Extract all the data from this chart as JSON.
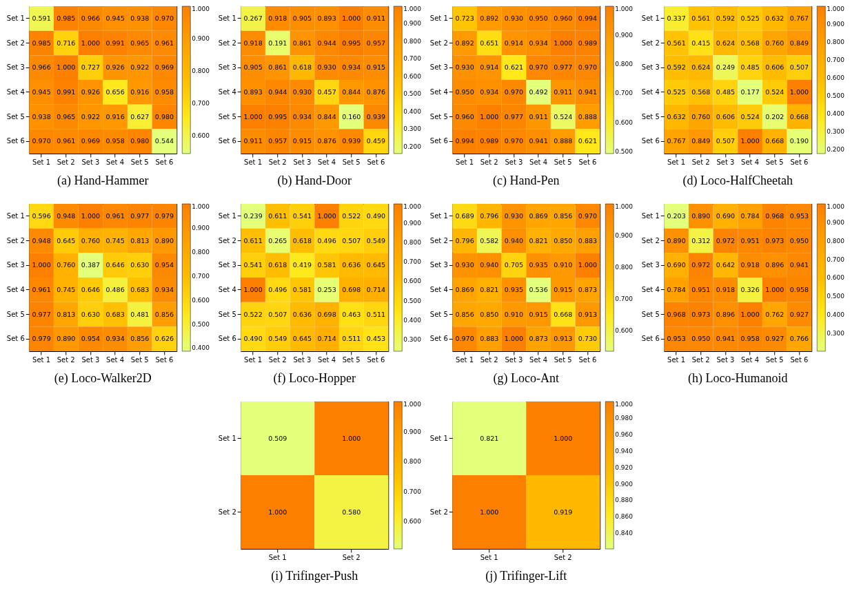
{
  "chart_data": [
    {
      "type": "heatmap",
      "title": "(a) Hand-Hammer",
      "categories": [
        "Set 1",
        "Set 2",
        "Set 3",
        "Set 4",
        "Set 5",
        "Set 6"
      ],
      "y_categories": [
        "Set 1",
        "Set 2",
        "Set 3",
        "Set 4",
        "Set 5",
        "Set 6"
      ],
      "cells": [
        [
          0.591,
          0.985,
          0.966,
          0.945,
          0.938,
          0.97
        ],
        [
          0.985,
          0.716,
          1.0,
          0.991,
          0.965,
          0.961
        ],
        [
          0.966,
          1.0,
          0.727,
          0.926,
          0.922,
          0.969
        ],
        [
          0.945,
          0.991,
          0.926,
          0.656,
          0.916,
          0.958
        ],
        [
          0.938,
          0.965,
          0.922,
          0.916,
          0.627,
          0.98
        ],
        [
          0.97,
          0.961,
          0.969,
          0.958,
          0.98,
          0.544
        ]
      ],
      "cell_labels": [
        [
          "0.591",
          "0.985",
          "0.966",
          "0.945",
          "0.938",
          "0.970"
        ],
        [
          "0.985",
          "0.716",
          "1.000",
          "0.991",
          "0.965",
          "0.961"
        ],
        [
          "0.966",
          "1.000",
          "0.727",
          "0.926",
          "0.922",
          "0.969"
        ],
        [
          "0.945",
          "0.991",
          "0.926",
          "0.656",
          "0.916",
          "0.958"
        ],
        [
          "0.938",
          "0.965",
          "0.922",
          "0.916",
          "0.627",
          "0.980"
        ],
        [
          "0.970",
          "0.961",
          "0.969",
          "0.958",
          "0.980",
          "0.544"
        ]
      ],
      "clim": [
        0.544,
        1.0
      ],
      "cticks": [
        {
          "value": 0.6,
          "label": "0.600"
        },
        {
          "value": 0.7,
          "label": "0.700"
        },
        {
          "value": 0.8,
          "label": "0.800"
        },
        {
          "value": 0.9,
          "label": "0.900"
        },
        {
          "value": 1.0,
          "label": "1.000"
        }
      ]
    },
    {
      "type": "heatmap",
      "title": "(b) Hand-Door",
      "categories": [
        "Set 1",
        "Set 2",
        "Set 3",
        "Set 4",
        "Set 5",
        "Set 6"
      ],
      "y_categories": [
        "Set 1",
        "Set 2",
        "Set 3",
        "Set 4",
        "Set 5",
        "Set 6"
      ],
      "cells": [
        [
          0.267,
          0.918,
          0.905,
          0.893,
          1.0,
          0.911
        ],
        [
          0.918,
          0.191,
          0.861,
          0.944,
          0.995,
          0.957
        ],
        [
          0.905,
          0.861,
          0.618,
          0.93,
          0.934,
          0.915
        ],
        [
          0.893,
          0.944,
          0.93,
          0.457,
          0.844,
          0.876
        ],
        [
          1.0,
          0.995,
          0.934,
          0.844,
          0.16,
          0.939
        ],
        [
          0.911,
          0.957,
          0.915,
          0.876,
          0.939,
          0.459
        ]
      ],
      "cell_labels": [
        [
          "0.267",
          "0.918",
          "0.905",
          "0.893",
          "1.000",
          "0.911"
        ],
        [
          "0.918",
          "0.191",
          "0.861",
          "0.944",
          "0.995",
          "0.957"
        ],
        [
          "0.905",
          "0.861",
          "0.618",
          "0.930",
          "0.934",
          "0.915"
        ],
        [
          "0.893",
          "0.944",
          "0.930",
          "0.457",
          "0.844",
          "0.876"
        ],
        [
          "1.000",
          "0.995",
          "0.934",
          "0.844",
          "0.160",
          "0.939"
        ],
        [
          "0.911",
          "0.957",
          "0.915",
          "0.876",
          "0.939",
          "0.459"
        ]
      ],
      "clim": [
        0.16,
        1.0
      ],
      "cticks": [
        {
          "value": 0.2,
          "label": "0.200"
        },
        {
          "value": 0.3,
          "label": "0.300"
        },
        {
          "value": 0.4,
          "label": "0.400"
        },
        {
          "value": 0.5,
          "label": "0.500"
        },
        {
          "value": 0.6,
          "label": "0.600"
        },
        {
          "value": 0.7,
          "label": "0.700"
        },
        {
          "value": 0.8,
          "label": "0.800"
        },
        {
          "value": 0.9,
          "label": "0.900"
        },
        {
          "value": 1.0,
          "label": "1.000"
        }
      ]
    },
    {
      "type": "heatmap",
      "title": "(c) Hand-Pen",
      "categories": [
        "Set 1",
        "Set 2",
        "Set 3",
        "Set 4",
        "Set 5",
        "Set 6"
      ],
      "y_categories": [
        "Set 1",
        "Set 2",
        "Set 3",
        "Set 4",
        "Set 5",
        "Set 6"
      ],
      "cells": [
        [
          0.723,
          0.892,
          0.93,
          0.95,
          0.96,
          0.994
        ],
        [
          0.892,
          0.651,
          0.914,
          0.934,
          1.0,
          0.989
        ],
        [
          0.93,
          0.914,
          0.621,
          0.97,
          0.977,
          0.97
        ],
        [
          0.95,
          0.934,
          0.97,
          0.492,
          0.911,
          0.941
        ],
        [
          0.96,
          1.0,
          0.977,
          0.911,
          0.524,
          0.888
        ],
        [
          0.994,
          0.989,
          0.97,
          0.941,
          0.888,
          0.621
        ]
      ],
      "cell_labels": [
        [
          "0.723",
          "0.892",
          "0.930",
          "0.950",
          "0.960",
          "0.994"
        ],
        [
          "0.892",
          "0.651",
          "0.914",
          "0.934",
          "1.000",
          "0.989"
        ],
        [
          "0.930",
          "0.914",
          "0.621",
          "0.970",
          "0.977",
          "0.970"
        ],
        [
          "0.950",
          "0.934",
          "0.970",
          "0.492",
          "0.911",
          "0.941"
        ],
        [
          "0.960",
          "1.000",
          "0.977",
          "0.911",
          "0.524",
          "0.888"
        ],
        [
          "0.994",
          "0.989",
          "0.970",
          "0.941",
          "0.888",
          "0.621"
        ]
      ],
      "clim": [
        0.492,
        1.0
      ],
      "cticks": [
        {
          "value": 0.5,
          "label": "0.500"
        },
        {
          "value": 0.6,
          "label": "0.600"
        },
        {
          "value": 0.7,
          "label": "0.700"
        },
        {
          "value": 0.8,
          "label": "0.800"
        },
        {
          "value": 0.9,
          "label": "0.900"
        },
        {
          "value": 1.0,
          "label": "1.000"
        }
      ]
    },
    {
      "type": "heatmap",
      "title": "(d) Loco-HalfCheetah",
      "categories": [
        "Set 1",
        "Set 2",
        "Set 3",
        "Set 4",
        "Set 5",
        "Set 6"
      ],
      "y_categories": [
        "Set 1",
        "Set 2",
        "Set 3",
        "Set 4",
        "Set 5",
        "Set 6"
      ],
      "cells": [
        [
          0.337,
          0.561,
          0.592,
          0.525,
          0.632,
          0.767
        ],
        [
          0.561,
          0.415,
          0.624,
          0.568,
          0.76,
          0.849
        ],
        [
          0.592,
          0.624,
          0.249,
          0.485,
          0.606,
          0.507
        ],
        [
          0.525,
          0.568,
          0.485,
          0.177,
          0.524,
          1.0
        ],
        [
          0.632,
          0.76,
          0.606,
          0.524,
          0.202,
          0.668
        ],
        [
          0.767,
          0.849,
          0.507,
          1.0,
          0.668,
          0.19
        ]
      ],
      "cell_labels": [
        [
          "0.337",
          "0.561",
          "0.592",
          "0.525",
          "0.632",
          "0.767"
        ],
        [
          "0.561",
          "0.415",
          "0.624",
          "0.568",
          "0.760",
          "0.849"
        ],
        [
          "0.592",
          "0.624",
          "0.249",
          "0.485",
          "0.606",
          "0.507"
        ],
        [
          "0.525",
          "0.568",
          "0.485",
          "0.177",
          "0.524",
          "1.000"
        ],
        [
          "0.632",
          "0.760",
          "0.606",
          "0.524",
          "0.202",
          "0.668"
        ],
        [
          "0.767",
          "0.849",
          "0.507",
          "1.000",
          "0.668",
          "0.190"
        ]
      ],
      "clim": [
        0.177,
        1.0
      ],
      "cticks": [
        {
          "value": 0.2,
          "label": "0.200"
        },
        {
          "value": 0.3,
          "label": "0.300"
        },
        {
          "value": 0.4,
          "label": "0.400"
        },
        {
          "value": 0.5,
          "label": "0.500"
        },
        {
          "value": 0.6,
          "label": "0.600"
        },
        {
          "value": 0.7,
          "label": "0.700"
        },
        {
          "value": 0.8,
          "label": "0.800"
        },
        {
          "value": 0.9,
          "label": "0.900"
        },
        {
          "value": 1.0,
          "label": "1.000"
        }
      ]
    },
    {
      "type": "heatmap",
      "title": "(e) Loco-Walker2D",
      "categories": [
        "Set 1",
        "Set 2",
        "Set 3",
        "Set 4",
        "Set 5",
        "Set 6"
      ],
      "y_categories": [
        "Set 1",
        "Set 2",
        "Set 3",
        "Set 4",
        "Set 5",
        "Set 6"
      ],
      "cells": [
        [
          0.596,
          0.948,
          1.0,
          0.961,
          0.977,
          0.979
        ],
        [
          0.948,
          0.645,
          0.76,
          0.745,
          0.813,
          0.89
        ],
        [
          1.0,
          0.76,
          0.387,
          0.646,
          0.63,
          0.954
        ],
        [
          0.961,
          0.745,
          0.646,
          0.486,
          0.683,
          0.934
        ],
        [
          0.977,
          0.813,
          0.63,
          0.683,
          0.481,
          0.856
        ],
        [
          0.979,
          0.89,
          0.954,
          0.934,
          0.856,
          0.626
        ]
      ],
      "cell_labels": [
        [
          "0.596",
          "0.948",
          "1.000",
          "0.961",
          "0.977",
          "0.979"
        ],
        [
          "0.948",
          "0.645",
          "0.760",
          "0.745",
          "0.813",
          "0.890"
        ],
        [
          "1.000",
          "0.760",
          "0.387",
          "0.646",
          "0.630",
          "0.954"
        ],
        [
          "0.961",
          "0.745",
          "0.646",
          "0.486",
          "0.683",
          "0.934"
        ],
        [
          "0.977",
          "0.813",
          "0.630",
          "0.683",
          "0.481",
          "0.856"
        ],
        [
          "0.979",
          "0.890",
          "0.954",
          "0.934",
          "0.856",
          "0.626"
        ]
      ],
      "clim": [
        0.387,
        1.0
      ],
      "cticks": [
        {
          "value": 0.4,
          "label": "0.400"
        },
        {
          "value": 0.5,
          "label": "0.500"
        },
        {
          "value": 0.6,
          "label": "0.600"
        },
        {
          "value": 0.7,
          "label": "0.700"
        },
        {
          "value": 0.8,
          "label": "0.800"
        },
        {
          "value": 0.9,
          "label": "0.900"
        },
        {
          "value": 1.0,
          "label": "1.000"
        }
      ]
    },
    {
      "type": "heatmap",
      "title": "(f) Loco-Hopper",
      "categories": [
        "Set 1",
        "Set 2",
        "Set 3",
        "Set 4",
        "Set 5",
        "Set 6"
      ],
      "y_categories": [
        "Set 1",
        "Set 2",
        "Set 3",
        "Set 4",
        "Set 5",
        "Set 6"
      ],
      "cells": [
        [
          0.239,
          0.611,
          0.541,
          1.0,
          0.522,
          0.49
        ],
        [
          0.611,
          0.265,
          0.618,
          0.496,
          0.507,
          0.549
        ],
        [
          0.541,
          0.618,
          0.419,
          0.581,
          0.636,
          0.645
        ],
        [
          1.0,
          0.496,
          0.581,
          0.253,
          0.698,
          0.714
        ],
        [
          0.522,
          0.507,
          0.636,
          0.698,
          0.463,
          0.511
        ],
        [
          0.49,
          0.549,
          0.645,
          0.714,
          0.511,
          0.453
        ]
      ],
      "cell_labels": [
        [
          "0.239",
          "0.611",
          "0.541",
          "1.000",
          "0.522",
          "0.490"
        ],
        [
          "0.611",
          "0.265",
          "0.618",
          "0.496",
          "0.507",
          "0.549"
        ],
        [
          "0.541",
          "0.618",
          "0.419",
          "0.581",
          "0.636",
          "0.645"
        ],
        [
          "1.000",
          "0.496",
          "0.581",
          "0.253",
          "0.698",
          "0.714"
        ],
        [
          "0.522",
          "0.507",
          "0.636",
          "0.698",
          "0.463",
          "0.511"
        ],
        [
          "0.490",
          "0.549",
          "0.645",
          "0.714",
          "0.511",
          "0.453"
        ]
      ],
      "clim": [
        0.239,
        1.0
      ],
      "cticks": [
        {
          "value": 0.3,
          "label": "0.300"
        },
        {
          "value": 0.4,
          "label": "0.400"
        },
        {
          "value": 0.5,
          "label": "0.500"
        },
        {
          "value": 0.6,
          "label": "0.600"
        },
        {
          "value": 0.7,
          "label": "0.700"
        },
        {
          "value": 0.8,
          "label": "0.800"
        },
        {
          "value": 0.9,
          "label": "0.900"
        },
        {
          "value": 1.0,
          "label": "1.000"
        }
      ]
    },
    {
      "type": "heatmap",
      "title": "(g) Loco-Ant",
      "categories": [
        "Set 1",
        "Set 2",
        "Set 3",
        "Set 4",
        "Set 5",
        "Set 6"
      ],
      "y_categories": [
        "Set 1",
        "Set 2",
        "Set 3",
        "Set 4",
        "Set 5",
        "Set 6"
      ],
      "cells": [
        [
          0.689,
          0.796,
          0.93,
          0.869,
          0.856,
          0.97
        ],
        [
          0.796,
          0.582,
          0.94,
          0.821,
          0.85,
          0.883
        ],
        [
          0.93,
          0.94,
          0.705,
          0.935,
          0.91,
          1.0
        ],
        [
          0.869,
          0.821,
          0.935,
          0.536,
          0.915,
          0.873
        ],
        [
          0.856,
          0.85,
          0.91,
          0.915,
          0.668,
          0.913
        ],
        [
          0.97,
          0.883,
          1.0,
          0.873,
          0.913,
          0.73
        ]
      ],
      "cell_labels": [
        [
          "0.689",
          "0.796",
          "0.930",
          "0.869",
          "0.856",
          "0.970"
        ],
        [
          "0.796",
          "0.582",
          "0.940",
          "0.821",
          "0.850",
          "0.883"
        ],
        [
          "0.930",
          "0.940",
          "0.705",
          "0.935",
          "0.910",
          "1.000"
        ],
        [
          "0.869",
          "0.821",
          "0.935",
          "0.536",
          "0.915",
          "0.873"
        ],
        [
          "0.856",
          "0.850",
          "0.910",
          "0.915",
          "0.668",
          "0.913"
        ],
        [
          "0.970",
          "0.883",
          "1.000",
          "0.873",
          "0.913",
          "0.730"
        ]
      ],
      "clim": [
        0.536,
        1.0
      ],
      "cticks": [
        {
          "value": 0.6,
          "label": "0.600"
        },
        {
          "value": 0.7,
          "label": "0.700"
        },
        {
          "value": 0.8,
          "label": "0.800"
        },
        {
          "value": 0.9,
          "label": "0.900"
        },
        {
          "value": 1.0,
          "label": "1.000"
        }
      ]
    },
    {
      "type": "heatmap",
      "title": "(h) Loco-Humanoid",
      "categories": [
        "Set 1",
        "Set 2",
        "Set 3",
        "Set 4",
        "Set 5",
        "Set 6"
      ],
      "y_categories": [
        "Set 1",
        "Set 2",
        "Set 3",
        "Set 4",
        "Set 5",
        "Set 6"
      ],
      "cells": [
        [
          0.203,
          0.89,
          0.69,
          0.784,
          0.968,
          0.953
        ],
        [
          0.89,
          0.312,
          0.972,
          0.951,
          0.973,
          0.95
        ],
        [
          0.69,
          0.972,
          0.642,
          0.918,
          0.896,
          0.941
        ],
        [
          0.784,
          0.951,
          0.918,
          0.326,
          1.0,
          0.958
        ],
        [
          0.968,
          0.973,
          0.896,
          1.0,
          0.762,
          0.927
        ],
        [
          0.953,
          0.95,
          0.941,
          0.958,
          0.927,
          0.766
        ]
      ],
      "cell_labels": [
        [
          "0.203",
          "0.890",
          "0.690",
          "0.784",
          "0.968",
          "0.953"
        ],
        [
          "0.890",
          "0.312",
          "0.972",
          "0.951",
          "0.973",
          "0.950"
        ],
        [
          "0.690",
          "0.972",
          "0.642",
          "0.918",
          "0.896",
          "0.941"
        ],
        [
          "0.784",
          "0.951",
          "0.918",
          "0.326",
          "1.000",
          "0.958"
        ],
        [
          "0.968",
          "0.973",
          "0.896",
          "1.000",
          "0.762",
          "0.927"
        ],
        [
          "0.953",
          "0.950",
          "0.941",
          "0.958",
          "0.927",
          "0.766"
        ]
      ],
      "clim": [
        0.203,
        1.0
      ],
      "cticks": [
        {
          "value": 0.3,
          "label": "0.300"
        },
        {
          "value": 0.4,
          "label": "0.400"
        },
        {
          "value": 0.5,
          "label": "0.500"
        },
        {
          "value": 0.6,
          "label": "0.600"
        },
        {
          "value": 0.7,
          "label": "0.700"
        },
        {
          "value": 0.8,
          "label": "0.800"
        },
        {
          "value": 0.9,
          "label": "0.900"
        },
        {
          "value": 1.0,
          "label": "1.000"
        }
      ]
    },
    {
      "type": "heatmap",
      "title": "(i) Trifinger-Push",
      "categories": [
        "Set 1",
        "Set 2"
      ],
      "y_categories": [
        "Set 1",
        "Set 2"
      ],
      "cells": [
        [
          0.509,
          1.0
        ],
        [
          1.0,
          0.58
        ]
      ],
      "cell_labels": [
        [
          "0.509",
          "1.000"
        ],
        [
          "1.000",
          "0.580"
        ]
      ],
      "clim": [
        0.509,
        1.0
      ],
      "cticks": [
        {
          "value": 0.6,
          "label": "0.600"
        },
        {
          "value": 0.7,
          "label": "0.700"
        },
        {
          "value": 0.8,
          "label": "0.800"
        },
        {
          "value": 0.9,
          "label": "0.900"
        },
        {
          "value": 1.0,
          "label": "1.000"
        }
      ]
    },
    {
      "type": "heatmap",
      "title": "(j) Trifinger-Lift",
      "categories": [
        "Set 1",
        "Set 2"
      ],
      "y_categories": [
        "Set 1",
        "Set 2"
      ],
      "cells": [
        [
          0.821,
          1.0
        ],
        [
          1.0,
          0.919
        ]
      ],
      "cell_labels": [
        [
          "0.821",
          "1.000"
        ],
        [
          "1.000",
          "0.919"
        ]
      ],
      "clim": [
        0.821,
        1.0
      ],
      "cticks": [
        {
          "value": 0.84,
          "label": "0.840"
        },
        {
          "value": 0.86,
          "label": "0.860"
        },
        {
          "value": 0.88,
          "label": "0.880"
        },
        {
          "value": 0.9,
          "label": "0.900"
        },
        {
          "value": 0.92,
          "label": "0.920"
        },
        {
          "value": 0.94,
          "label": "0.940"
        },
        {
          "value": 0.96,
          "label": "0.960"
        },
        {
          "value": 0.98,
          "label": "0.980"
        },
        {
          "value": 1.0,
          "label": "1.000"
        }
      ]
    }
  ]
}
